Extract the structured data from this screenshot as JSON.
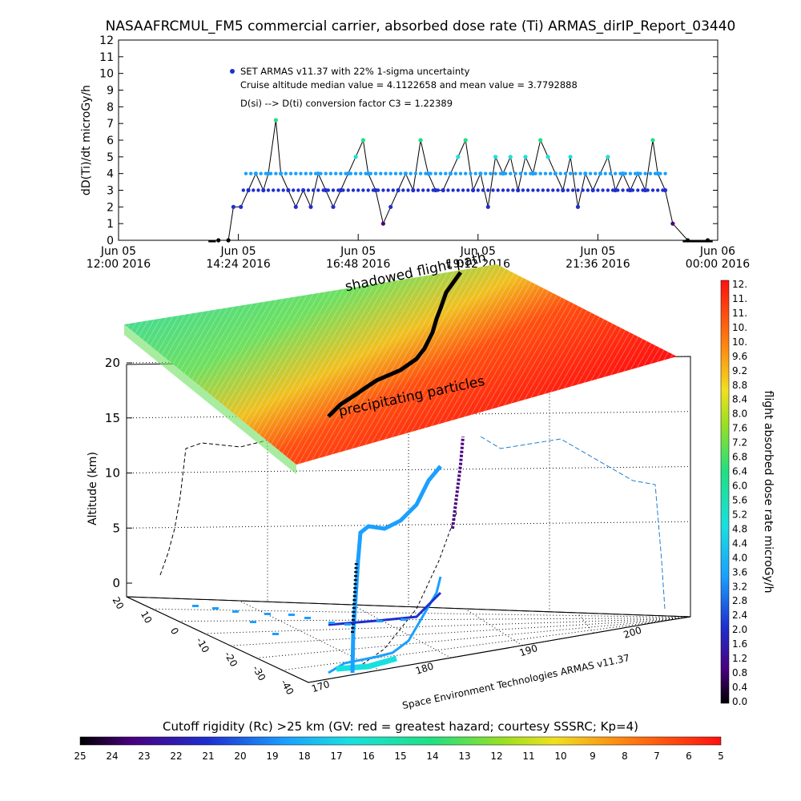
{
  "chart_data": {
    "type": "line",
    "title": "NASAAFRCMUL_FM5 commercial carrier, absorbed dose rate (Ti) ARMAS_dirIP_Report_03440",
    "top_panel": {
      "type": "scatter",
      "ylabel": "dD(Ti)/dt microGy/h",
      "ylim": [
        0,
        12
      ],
      "yticks": [
        0,
        1,
        2,
        3,
        4,
        5,
        6,
        7,
        8,
        9,
        10,
        11,
        12
      ],
      "xticks": [
        {
          "line1": "Jun 05",
          "line2": "12:00 2016"
        },
        {
          "line1": "Jun 05",
          "line2": "14:24 2016"
        },
        {
          "line1": "Jun 05",
          "line2": "16:48 2016"
        },
        {
          "line1": "Jun 05",
          "line2": "19:12 2016"
        },
        {
          "line1": "Jun 05",
          "line2": "21:36 2016"
        },
        {
          "line1": "Jun 06",
          "line2": "00:00 2016"
        }
      ],
      "legend": "SET ARMAS v11.37 with 22% 1-sigma uncertainty",
      "annotations": [
        "Cruise altitude median value = 4.1122658 and mean value = 3.7792888",
        "D(si) --> D(ti) conversion factor C3 = 1.22389"
      ],
      "series_x_hours": [
        14.0,
        14.2,
        14.3,
        14.45,
        14.6,
        14.75,
        14.9,
        15.0,
        15.15,
        15.25,
        15.4,
        15.55,
        15.7,
        15.85,
        16.0,
        16.15,
        16.3,
        16.45,
        16.6,
        16.75,
        16.9,
        17.0,
        17.15,
        17.3,
        17.45,
        17.6,
        17.75,
        17.9,
        18.05,
        18.2,
        18.35,
        18.5,
        18.65,
        18.8,
        18.95,
        19.1,
        19.25,
        19.4,
        19.55,
        19.7,
        19.85,
        20.0,
        20.15,
        20.3,
        20.45,
        20.6,
        20.75,
        20.9,
        21.05,
        21.2,
        21.35,
        21.5,
        21.65,
        21.8,
        21.95,
        22.1,
        22.25,
        22.4,
        22.55,
        22.7,
        22.8,
        22.95,
        23.1,
        23.4,
        23.8
      ],
      "series_y": [
        0,
        0,
        2,
        2,
        3,
        4,
        3,
        4,
        7.2,
        4,
        3,
        2,
        3,
        2,
        4,
        3,
        2,
        3,
        4,
        5,
        6,
        4,
        3,
        1,
        2,
        3,
        4,
        3,
        6,
        4,
        3,
        3,
        4,
        5,
        6,
        3,
        4,
        2,
        5,
        4,
        5,
        3,
        5,
        4,
        6,
        5,
        4,
        3,
        5,
        2,
        4,
        3,
        4,
        5,
        3,
        4,
        3,
        4,
        3,
        6,
        4,
        3,
        1,
        0,
        0
      ]
    },
    "panel_3d": {
      "type": "scatter",
      "zlabel": "Altitude (km)",
      "zticks": [
        0,
        5,
        10,
        15,
        20
      ],
      "yticks": [
        -40,
        -30,
        -20,
        -10,
        0,
        10,
        20
      ],
      "xticks": [
        170,
        180,
        190,
        200
      ],
      "annotations": [
        "shadowed flight path",
        "precipitating particles"
      ],
      "credit": "Space Environment Technologies ARMAS v11.37"
    },
    "dose_colorbar": {
      "label": "flight absorbed dose rate microGy/h",
      "ticks": [
        "12.",
        "11.",
        "11.",
        "10.",
        "10.",
        "9.6",
        "9.2",
        "8.8",
        "8.4",
        "8.0",
        "7.6",
        "7.2",
        "6.8",
        "6.4",
        "6.0",
        "5.6",
        "5.2",
        "4.8",
        "4.4",
        "4.0",
        "3.6",
        "3.2",
        "2.8",
        "2.4",
        "2.0",
        "1.6",
        "1.2",
        "0.8",
        "0.4",
        "0.0"
      ]
    },
    "rigidity_colorbar": {
      "label": "Cutoff rigidity (Rc) >25 km (GV: red = greatest hazard; courtesy SSSRC; Kp=4)",
      "ticks": [
        "25",
        "24",
        "23",
        "22",
        "21",
        "20",
        "19",
        "18",
        "17",
        "16",
        "15",
        "14",
        "13",
        "12",
        "11",
        "10",
        "9",
        "8",
        "7",
        "6",
        "5"
      ]
    },
    "colors": {
      "low": "#000000",
      "blue": "#1e2fd0",
      "cyan": "#19e0e0",
      "green": "#20e080",
      "yellow": "#f0e020",
      "red": "#ff1010"
    }
  }
}
